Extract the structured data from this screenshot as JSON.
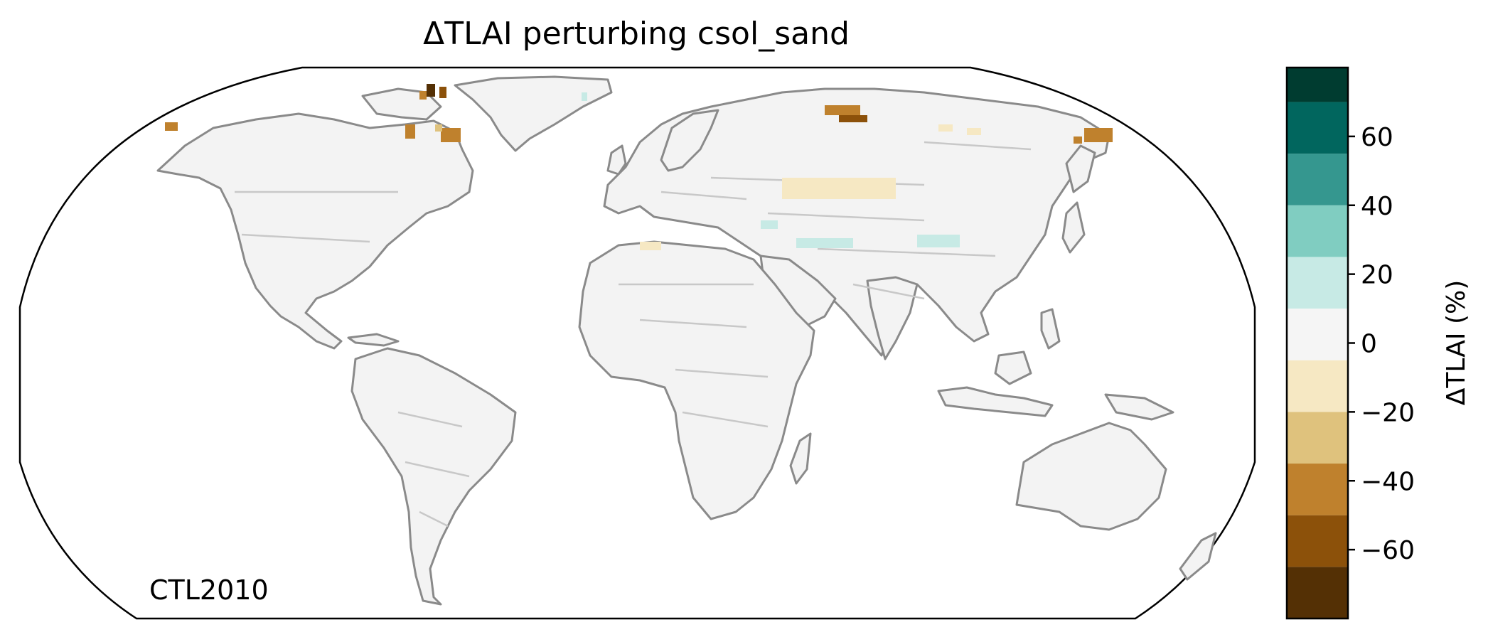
{
  "title": "ΔTLAI perturbing csol_sand",
  "panel_label": "CTL2010",
  "colorbar": {
    "label": "ΔTLAI (%)",
    "range": [
      -80,
      80
    ],
    "levels": [
      -80,
      -65,
      -50,
      -35,
      -20,
      -5,
      10,
      25,
      40,
      55,
      70,
      80
    ],
    "colors": [
      "#543005",
      "#8c510a",
      "#bf812d",
      "#dfc27d",
      "#f6e8c3",
      "#f5f5f5",
      "#c7eae5",
      "#80cdc1",
      "#35978f",
      "#01665e",
      "#003c30"
    ],
    "ticks": [
      {
        "value": 60,
        "label": "60"
      },
      {
        "value": 40,
        "label": "40"
      },
      {
        "value": 20,
        "label": "20"
      },
      {
        "value": 0,
        "label": "0"
      },
      {
        "value": -20,
        "label": "−20"
      },
      {
        "value": -40,
        "label": "−40"
      },
      {
        "value": -60,
        "label": "−60"
      }
    ]
  },
  "map": {
    "projection": "Robinson",
    "land_color": "#f3f3f3",
    "coastline_color": "#8a8a8a",
    "border_color": "#c8c8c8",
    "anomalies": [
      {
        "region": "Canadian Arctic Archipelago",
        "class": "strong-negative",
        "color": "#8c510a"
      },
      {
        "region": "Hudson Bay coast",
        "class": "negative",
        "color": "#bf812d"
      },
      {
        "region": "Alaska tip",
        "class": "negative",
        "color": "#bf812d"
      },
      {
        "region": "Taymyr / Northern Siberia",
        "class": "negative",
        "color": "#bf812d"
      },
      {
        "region": "Chukotka",
        "class": "negative",
        "color": "#bf812d"
      },
      {
        "region": "Kazakhstan steppe",
        "class": "weak-negative",
        "color": "#f6e8c3"
      },
      {
        "region": "Tibetan Plateau",
        "class": "weak-positive",
        "color": "#c7eae5"
      },
      {
        "region": "Central Asia",
        "class": "weak-positive",
        "color": "#c7eae5"
      }
    ]
  }
}
